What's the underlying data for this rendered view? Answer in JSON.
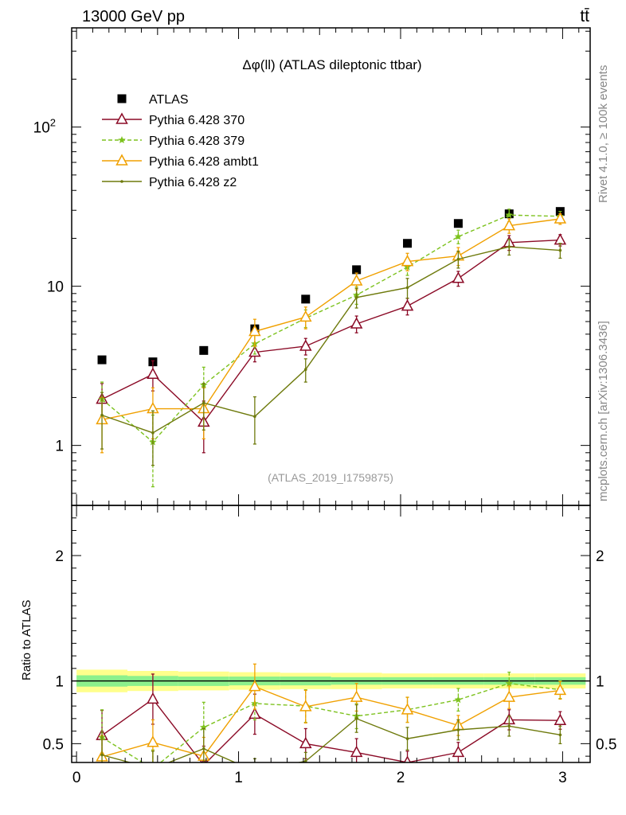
{
  "header": {
    "energy_label": "13000 GeV pp",
    "process_label": "tt̄"
  },
  "side_labels": {
    "rivet": "Rivet 4.1.0, ≥ 100k events",
    "site": "mcplots.cern.ch [arXiv:1306.3436]"
  },
  "colors": {
    "atlas": "#000000",
    "p370": "#8b0a26",
    "p379": "#7dc21e",
    "ambt1": "#f0a000",
    "z2": "#6e7a0c",
    "band_outer": "#ffff8c",
    "band_inner": "#8cf08c"
  },
  "chart_data": [
    {
      "type": "line",
      "title": "Δφ(ll) (ATLAS dileptonic ttbar)",
      "analysis_tag": "(ATLAS_2019_I1759875)",
      "yscale": "log",
      "xlim": [
        -0.03,
        3.17
      ],
      "ylim": [
        0.42,
        420
      ],
      "ytick_labels": [
        {
          "value": 1,
          "label": "1"
        },
        {
          "value": 10,
          "label": "10"
        },
        {
          "value": 100,
          "label": "10",
          "sup": "2"
        }
      ],
      "x": [
        0.157,
        0.471,
        0.785,
        1.1,
        1.414,
        1.728,
        2.042,
        2.356,
        2.67,
        2.985
      ],
      "legend_position": "top-left",
      "series": [
        {
          "name": "ATLAS",
          "key": "atlas",
          "style": "markers-square",
          "values": [
            3.45,
            3.35,
            3.95,
            5.4,
            8.3,
            12.7,
            18.6,
            24.8,
            28.5,
            29.5
          ]
        },
        {
          "name": "Pythia 6.428 370",
          "key": "p370",
          "style": "line-open-triangle",
          "values": [
            1.95,
            2.8,
            1.4,
            3.85,
            4.2,
            5.8,
            7.5,
            11.2,
            18.8,
            19.5
          ],
          "errors": [
            0.5,
            0.6,
            0.5,
            0.5,
            0.5,
            0.7,
            0.9,
            1.2,
            2.0,
            1.6
          ]
        },
        {
          "name": "Pythia 6.428 379",
          "key": "p379",
          "style": "dashed-star",
          "values": [
            1.95,
            1.05,
            2.4,
            4.35,
            6.3,
            8.8,
            13.2,
            20.5,
            28.0,
            27.5
          ],
          "errors": [
            0.55,
            0.5,
            0.7,
            0.6,
            0.8,
            1.1,
            1.5,
            2.0,
            2.5,
            2.0
          ]
        },
        {
          "name": "Pythia 6.428 ambt1",
          "key": "ambt1",
          "style": "line-open-triangle",
          "values": [
            1.45,
            1.7,
            1.7,
            5.2,
            6.4,
            10.8,
            14.3,
            15.5,
            24.0,
            26.5
          ],
          "errors": [
            0.55,
            0.6,
            0.6,
            1.0,
            1.0,
            1.3,
            1.8,
            2.0,
            2.5,
            2.0
          ]
        },
        {
          "name": "Pythia 6.428 z2",
          "key": "z2",
          "style": "line-dot",
          "values": [
            1.55,
            1.2,
            1.85,
            1.52,
            3.0,
            8.5,
            9.8,
            14.8,
            17.7,
            16.8
          ],
          "errors": [
            0.6,
            0.45,
            0.6,
            0.5,
            0.5,
            1.2,
            1.4,
            1.8,
            2.0,
            1.8
          ]
        }
      ]
    },
    {
      "type": "line",
      "ylabel": "Ratio to ATLAS",
      "yscale": "linear",
      "xlim": [
        -0.03,
        3.17
      ],
      "ylim": [
        0.35,
        2.4
      ],
      "x_ticks": [
        0,
        1,
        2,
        3
      ],
      "y_ticks": [
        0.5,
        1,
        2
      ],
      "reference_line": 1,
      "band_outer": [
        [
          0.91,
          1.09
        ],
        [
          0.92,
          1.08
        ],
        [
          0.925,
          1.075
        ],
        [
          0.93,
          1.07
        ],
        [
          0.935,
          1.065
        ],
        [
          0.935,
          1.065
        ],
        [
          0.94,
          1.06
        ],
        [
          0.94,
          1.06
        ],
        [
          0.94,
          1.06
        ],
        [
          0.94,
          1.06
        ]
      ],
      "band_inner": [
        [
          0.955,
          1.045
        ],
        [
          0.96,
          1.04
        ],
        [
          0.96,
          1.035
        ],
        [
          0.965,
          1.035
        ],
        [
          0.965,
          1.035
        ],
        [
          0.97,
          1.03
        ],
        [
          0.97,
          1.03
        ],
        [
          0.97,
          1.03
        ],
        [
          0.97,
          1.03
        ],
        [
          0.97,
          1.03
        ]
      ],
      "x": [
        0.157,
        0.471,
        0.785,
        1.1,
        1.414,
        1.728,
        2.042,
        2.356,
        2.67,
        2.985
      ],
      "series": [
        {
          "name": "Pythia 6.428 370",
          "key": "p370",
          "style": "line-open-triangle",
          "values": [
            0.565,
            0.855,
            0.33,
            0.735,
            0.5,
            0.43,
            0.35,
            0.43,
            0.69,
            0.685
          ],
          "errors": [
            0.2,
            0.2,
            0.15,
            0.16,
            0.12,
            0.11,
            0.09,
            0.08,
            0.08,
            0.07
          ]
        },
        {
          "name": "Pythia 6.428 379",
          "key": "p379",
          "style": "dashed-star",
          "values": [
            0.55,
            0.3,
            0.63,
            0.82,
            0.8,
            0.72,
            0.77,
            0.85,
            0.98,
            0.93
          ],
          "errors": [
            0.22,
            0.15,
            0.2,
            0.13,
            0.13,
            0.1,
            0.1,
            0.09,
            0.09,
            0.07
          ]
        },
        {
          "name": "Pythia 6.428 ambt1",
          "key": "ambt1",
          "style": "line-open-triangle",
          "values": [
            0.395,
            0.51,
            0.4,
            0.955,
            0.795,
            0.87,
            0.77,
            0.645,
            0.87,
            0.925
          ],
          "errors": [
            0.17,
            0.18,
            0.15,
            0.18,
            0.13,
            0.11,
            0.1,
            0.08,
            0.09,
            0.07
          ]
        },
        {
          "name": "Pythia 6.428 z2",
          "key": "z2",
          "style": "line-dot",
          "values": [
            0.41,
            0.3,
            0.46,
            0.28,
            0.36,
            0.7,
            0.54,
            0.61,
            0.64,
            0.57
          ],
          "errors": [
            0.18,
            0.14,
            0.16,
            0.1,
            0.07,
            0.11,
            0.09,
            0.08,
            0.08,
            0.07
          ]
        }
      ]
    }
  ]
}
